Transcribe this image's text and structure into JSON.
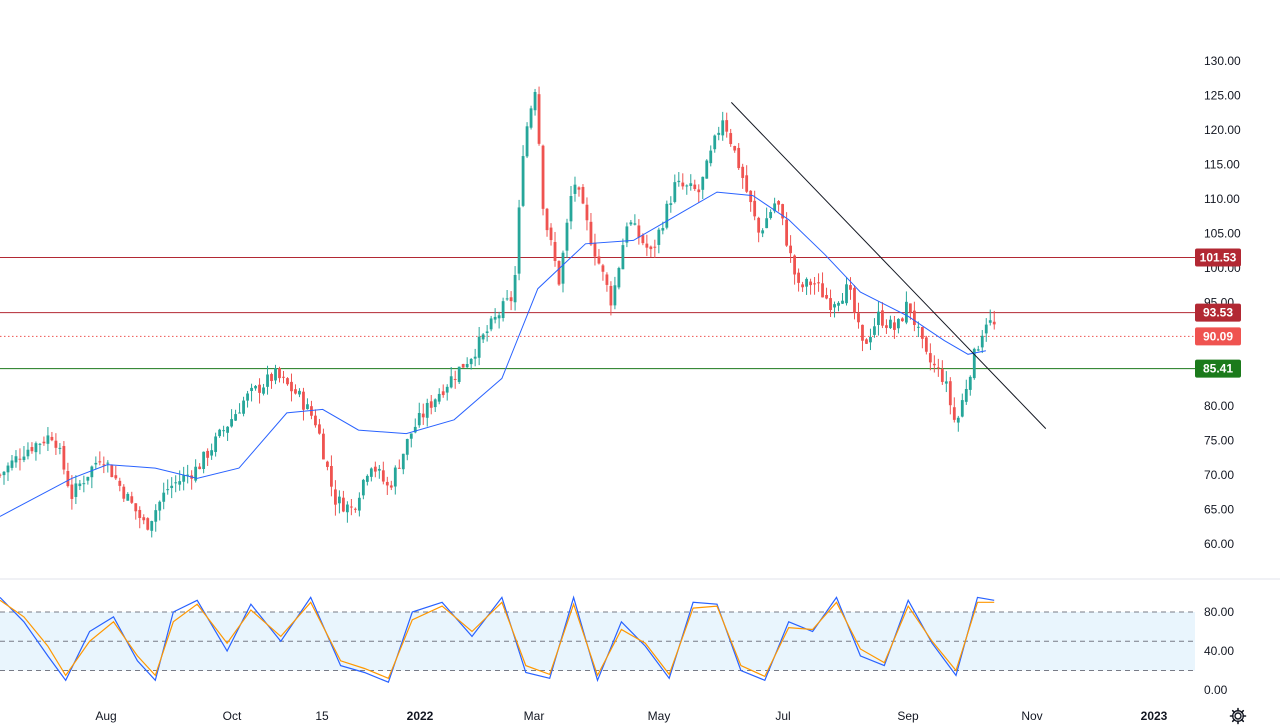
{
  "chart_data": [
    {
      "type": "candlestick",
      "title": "",
      "y_ticks": [
        "130.00",
        "125.00",
        "120.00",
        "115.00",
        "110.00",
        "105.00",
        "100.00",
        "95.00",
        "80.00",
        "75.00",
        "70.00",
        "65.00",
        "60.00"
      ],
      "x_ticks": [
        "Aug",
        "Oct",
        "15",
        "2022",
        "Mar",
        "May",
        "Jul",
        "Sep",
        "Nov",
        "2023"
      ],
      "ylim": [
        57,
        133
      ],
      "horizontal_levels": [
        {
          "value": 101.53,
          "label": "101.53",
          "color": "#b22833"
        },
        {
          "value": 93.53,
          "label": "93.53",
          "color": "#b22833"
        },
        {
          "value": 90.09,
          "label": "90.09",
          "color": "#ef5350",
          "style": "dotted"
        },
        {
          "value": 85.41,
          "label": "85.41",
          "color": "#1b7a1b"
        }
      ],
      "trendline": {
        "from": {
          "t": 0.612,
          "price": 124
        },
        "to": {
          "t": 0.845,
          "price": 76
        }
      },
      "moving_average_color": "#2962ff",
      "up_color": "#26a69a",
      "down_color": "#ef5350",
      "close_path": [
        [
          0.0,
          70.0
        ],
        [
          0.02,
          73.5
        ],
        [
          0.045,
          76.0
        ],
        [
          0.06,
          67.0
        ],
        [
          0.085,
          73.0
        ],
        [
          0.1,
          68.5
        ],
        [
          0.122,
          62.5
        ],
        [
          0.14,
          68.0
        ],
        [
          0.165,
          71.0
        ],
        [
          0.185,
          76.0
        ],
        [
          0.205,
          81.0
        ],
        [
          0.23,
          84.5
        ],
        [
          0.25,
          81.5
        ],
        [
          0.265,
          77.5
        ],
        [
          0.28,
          66.5
        ],
        [
          0.295,
          65.0
        ],
        [
          0.31,
          72.0
        ],
        [
          0.325,
          68.0
        ],
        [
          0.345,
          76.5
        ],
        [
          0.365,
          81.5
        ],
        [
          0.395,
          87.5
        ],
        [
          0.42,
          94.0
        ],
        [
          0.43,
          96.0
        ],
        [
          0.438,
          118.0
        ],
        [
          0.448,
          126.5
        ],
        [
          0.455,
          108.0
        ],
        [
          0.468,
          98.0
        ],
        [
          0.48,
          113.0
        ],
        [
          0.495,
          104.0
        ],
        [
          0.512,
          95.0
        ],
        [
          0.525,
          107.0
        ],
        [
          0.545,
          102.0
        ],
        [
          0.565,
          112.0
        ],
        [
          0.585,
          111.0
        ],
        [
          0.605,
          122.0
        ],
        [
          0.62,
          114.0
        ],
        [
          0.635,
          105.0
        ],
        [
          0.65,
          110.0
        ],
        [
          0.668,
          97.0
        ],
        [
          0.68,
          98.0
        ],
        [
          0.695,
          95.0
        ],
        [
          0.71,
          97.0
        ],
        [
          0.722,
          88.5
        ],
        [
          0.735,
          93.0
        ],
        [
          0.75,
          91.0
        ],
        [
          0.76,
          95.0
        ],
        [
          0.775,
          87.0
        ],
        [
          0.79,
          84.0
        ],
        [
          0.8,
          77.0
        ],
        [
          0.813,
          86.0
        ],
        [
          0.825,
          92.5
        ],
        [
          0.832,
          91.5
        ]
      ],
      "moving_average": [
        [
          0.0,
          64.0
        ],
        [
          0.06,
          69.5
        ],
        [
          0.09,
          71.5
        ],
        [
          0.13,
          71.0
        ],
        [
          0.165,
          69.5
        ],
        [
          0.2,
          71.0
        ],
        [
          0.24,
          79.0
        ],
        [
          0.27,
          79.5
        ],
        [
          0.3,
          76.5
        ],
        [
          0.34,
          76.0
        ],
        [
          0.38,
          78.0
        ],
        [
          0.42,
          84.0
        ],
        [
          0.45,
          97.0
        ],
        [
          0.49,
          103.5
        ],
        [
          0.53,
          104.0
        ],
        [
          0.57,
          108.0
        ],
        [
          0.6,
          111.0
        ],
        [
          0.63,
          110.5
        ],
        [
          0.66,
          107.0
        ],
        [
          0.69,
          102.0
        ],
        [
          0.72,
          96.5
        ],
        [
          0.76,
          93.0
        ],
        [
          0.79,
          89.5
        ],
        [
          0.81,
          87.5
        ],
        [
          0.825,
          88.0
        ]
      ]
    },
    {
      "type": "line",
      "title": "",
      "y_ticks": [
        "80.00",
        "40.00",
        "0.00"
      ],
      "ylim": [
        0,
        100
      ],
      "band": [
        20,
        80
      ],
      "series": [
        {
          "color": "#2962ff",
          "points": [
            [
              0.0,
              95
            ],
            [
              0.02,
              70
            ],
            [
              0.04,
              35
            ],
            [
              0.055,
              10
            ],
            [
              0.075,
              60
            ],
            [
              0.095,
              75
            ],
            [
              0.115,
              30
            ],
            [
              0.13,
              10
            ],
            [
              0.145,
              80
            ],
            [
              0.165,
              92
            ],
            [
              0.19,
              40
            ],
            [
              0.21,
              88
            ],
            [
              0.235,
              50
            ],
            [
              0.26,
              95
            ],
            [
              0.285,
              25
            ],
            [
              0.305,
              18
            ],
            [
              0.325,
              8
            ],
            [
              0.345,
              80
            ],
            [
              0.37,
              90
            ],
            [
              0.395,
              55
            ],
            [
              0.42,
              95
            ],
            [
              0.44,
              18
            ],
            [
              0.46,
              12
            ],
            [
              0.48,
              95
            ],
            [
              0.5,
              10
            ],
            [
              0.52,
              70
            ],
            [
              0.54,
              45
            ],
            [
              0.56,
              12
            ],
            [
              0.58,
              90
            ],
            [
              0.6,
              88
            ],
            [
              0.62,
              20
            ],
            [
              0.64,
              10
            ],
            [
              0.66,
              70
            ],
            [
              0.68,
              60
            ],
            [
              0.7,
              95
            ],
            [
              0.72,
              35
            ],
            [
              0.74,
              25
            ],
            [
              0.76,
              92
            ],
            [
              0.78,
              48
            ],
            [
              0.8,
              15
            ],
            [
              0.818,
              95
            ],
            [
              0.832,
              92
            ]
          ]
        },
        {
          "color": "#ff9800",
          "points": [
            [
              0.0,
              92
            ],
            [
              0.02,
              75
            ],
            [
              0.04,
              45
            ],
            [
              0.055,
              15
            ],
            [
              0.075,
              50
            ],
            [
              0.095,
              70
            ],
            [
              0.115,
              35
            ],
            [
              0.13,
              15
            ],
            [
              0.145,
              70
            ],
            [
              0.165,
              88
            ],
            [
              0.19,
              48
            ],
            [
              0.21,
              82
            ],
            [
              0.235,
              55
            ],
            [
              0.26,
              90
            ],
            [
              0.285,
              30
            ],
            [
              0.305,
              22
            ],
            [
              0.325,
              12
            ],
            [
              0.345,
              72
            ],
            [
              0.37,
              86
            ],
            [
              0.395,
              60
            ],
            [
              0.42,
              90
            ],
            [
              0.44,
              25
            ],
            [
              0.46,
              16
            ],
            [
              0.48,
              88
            ],
            [
              0.5,
              15
            ],
            [
              0.52,
              62
            ],
            [
              0.54,
              48
            ],
            [
              0.56,
              16
            ],
            [
              0.58,
              84
            ],
            [
              0.6,
              86
            ],
            [
              0.62,
              25
            ],
            [
              0.64,
              14
            ],
            [
              0.66,
              64
            ],
            [
              0.68,
              62
            ],
            [
              0.7,
              90
            ],
            [
              0.72,
              42
            ],
            [
              0.74,
              28
            ],
            [
              0.76,
              86
            ],
            [
              0.78,
              50
            ],
            [
              0.8,
              20
            ],
            [
              0.818,
              90
            ],
            [
              0.832,
              90
            ]
          ]
        }
      ]
    }
  ],
  "toolbar": {
    "settings_icon": "gear-icon"
  }
}
